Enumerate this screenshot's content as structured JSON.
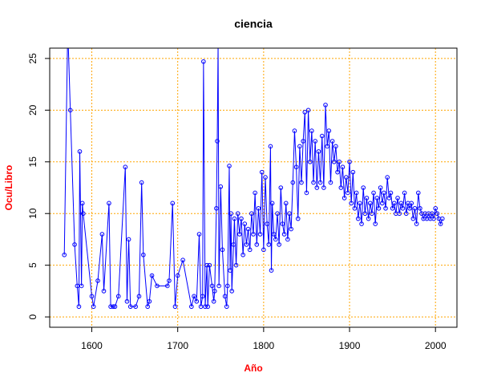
{
  "chart_data": {
    "type": "line",
    "title": "ciencia",
    "x_label": "Año",
    "y_label": "Ocu/Libro",
    "color": "#0000ff",
    "label_color": "#ff0000",
    "grid": true,
    "grid_color": "#ffa500",
    "xlim": [
      1551,
      2025
    ],
    "ylim": [
      -1,
      26
    ],
    "xticks": [
      1600,
      1700,
      1800,
      1900,
      2000
    ],
    "yticks": [
      0,
      5,
      10,
      15,
      20,
      25
    ],
    "x": [
      1568,
      1572,
      1575,
      1580,
      1583,
      1585,
      1586,
      1588,
      1589,
      1590,
      1600,
      1602,
      1607,
      1612,
      1614,
      1620,
      1622,
      1625,
      1627,
      1631,
      1639,
      1641,
      1643,
      1645,
      1651,
      1655,
      1658,
      1660,
      1665,
      1667,
      1670,
      1676,
      1688,
      1690,
      1694,
      1697,
      1700,
      1706,
      1716,
      1719,
      1722,
      1725,
      1727,
      1729,
      1730,
      1732,
      1734,
      1735,
      1737,
      1740,
      1742,
      1743,
      1745,
      1746,
      1747,
      1748,
      1750,
      1752,
      1755,
      1757,
      1758,
      1760,
      1761,
      1762,
      1763,
      1765,
      1766,
      1768,
      1770,
      1772,
      1774,
      1776,
      1778,
      1780,
      1782,
      1784,
      1786,
      1788,
      1790,
      1792,
      1794,
      1796,
      1798,
      1800,
      1802,
      1804,
      1806,
      1808,
      1809,
      1810,
      1812,
      1814,
      1816,
      1818,
      1820,
      1822,
      1824,
      1826,
      1828,
      1830,
      1832,
      1834,
      1836,
      1838,
      1840,
      1842,
      1844,
      1846,
      1848,
      1850,
      1852,
      1854,
      1856,
      1858,
      1860,
      1862,
      1864,
      1866,
      1868,
      1870,
      1872,
      1874,
      1876,
      1878,
      1880,
      1882,
      1884,
      1886,
      1888,
      1890,
      1892,
      1894,
      1896,
      1898,
      1900,
      1902,
      1904,
      1906,
      1908,
      1910,
      1912,
      1914,
      1916,
      1918,
      1920,
      1922,
      1924,
      1926,
      1928,
      1930,
      1932,
      1934,
      1936,
      1938,
      1940,
      1942,
      1944,
      1946,
      1948,
      1950,
      1952,
      1954,
      1956,
      1958,
      1960,
      1962,
      1964,
      1966,
      1968,
      1970,
      1972,
      1974,
      1976,
      1978,
      1980,
      1982,
      1984,
      1986,
      1988,
      1990,
      1992,
      1994,
      1996,
      1998,
      2000,
      2002,
      2004,
      2006,
      2008
    ],
    "values": [
      6,
      28,
      20,
      7,
      3,
      1,
      16,
      3,
      11,
      10,
      2,
      1,
      3.5,
      8,
      2.5,
      11,
      1,
      1,
      1,
      2,
      14.5,
      1.5,
      7.5,
      1,
      1,
      2,
      13,
      6,
      1,
      1.5,
      4,
      3,
      3,
      3.5,
      11,
      1,
      4,
      5.5,
      1,
      2,
      1.5,
      8,
      1,
      2,
      24.7,
      1,
      5,
      1,
      5,
      3,
      1.5,
      2.5,
      10.5,
      17,
      26.5,
      3,
      12.6,
      6.5,
      2,
      1,
      3,
      14.6,
      4.5,
      10,
      2.5,
      7,
      9.5,
      5,
      10,
      8,
      9.5,
      6,
      9,
      7,
      8.5,
      6.5,
      10,
      8,
      12,
      7,
      10.5,
      8,
      14,
      6.5,
      13.5,
      9,
      7,
      16.5,
      4.5,
      11,
      8,
      7.5,
      10,
      7,
      12.5,
      9,
      8,
      11,
      7.5,
      10,
      8.5,
      13,
      18,
      14.5,
      9.5,
      16.5,
      13,
      17,
      19.8,
      12,
      20,
      15,
      18,
      13,
      17,
      12.5,
      16,
      13,
      17.5,
      12.5,
      20.5,
      16.5,
      18,
      13,
      17,
      15,
      16.5,
      14,
      15,
      12.5,
      14.5,
      11.5,
      13.5,
      12,
      15,
      11,
      14,
      10.5,
      12,
      9.5,
      11,
      9,
      12.5,
      10,
      11.5,
      9.5,
      11,
      10,
      12,
      9,
      11.5,
      10.5,
      12.5,
      11,
      12,
      10.5,
      13.5,
      11.5,
      12,
      10.5,
      11,
      10,
      11.5,
      10,
      11,
      10.5,
      12,
      10,
      11,
      10.5,
      11,
      9.5,
      10.5,
      9,
      12,
      10.5,
      10,
      9.5,
      10,
      9.5,
      10,
      9.5,
      10,
      9.5,
      10.5,
      10,
      9.5,
      9,
      9.5
    ]
  }
}
